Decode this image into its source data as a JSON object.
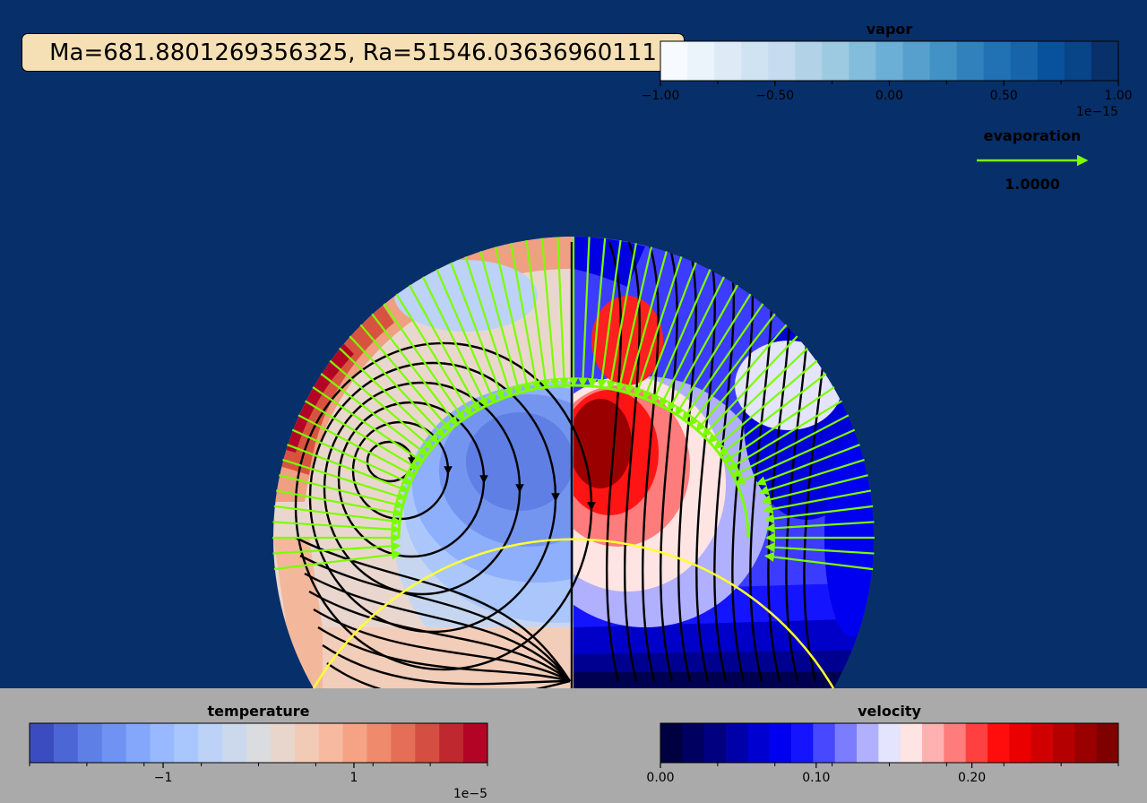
{
  "title": "Ma=681.8801269356325, Ra=51546.03636960111",
  "colors": {
    "background": "#072f69",
    "bottom_panel": "#aaaaaa",
    "title_box": "#f5dfb4",
    "interface_outline": "#ffff33",
    "evaporation_arrows": "#7cfc00",
    "streamlines": "#000000"
  },
  "chart_data": {
    "type": "heatmap",
    "description_fields": {
      "left_half_field": "temperature",
      "right_half_field": "velocity",
      "annulus_field": "vapor",
      "overlays": [
        "streamlines",
        "evaporation-arrows"
      ]
    },
    "colorbars": {
      "vapor": {
        "label": "vapor",
        "range": [
          -1.0,
          1.0
        ],
        "ticks": [
          -1.0,
          -0.5,
          0.0,
          0.5,
          1.0
        ],
        "tick_labels": [
          "−1.00",
          "−0.50",
          "0.00",
          "0.50",
          "1.00"
        ],
        "offset_label": "1e−15",
        "colors": [
          "#f7fbff",
          "#ebf3fb",
          "#deebf7",
          "#d0e3f3",
          "#c6dbef",
          "#b2d2e8",
          "#9ecae1",
          "#84bcdb",
          "#6baed6",
          "#57a0ce",
          "#4292c6",
          "#3181bd",
          "#2171b5",
          "#1764ab",
          "#08519c",
          "#084488",
          "#08306b"
        ]
      },
      "temperature": {
        "label": "temperature",
        "range": [
          -2.4,
          2.4
        ],
        "ticks": [
          -1,
          1
        ],
        "tick_labels": [
          "−1",
          "1"
        ],
        "offset_label": "1e−5",
        "colors": [
          "#3b4cc0",
          "#4c66d6",
          "#5e7fe6",
          "#7093f3",
          "#84a7fc",
          "#98b9ff",
          "#aac7fd",
          "#bcd2f7",
          "#ccd9ed",
          "#dbdcdf",
          "#e8d6cc",
          "#f2cbb7",
          "#f7baa0",
          "#f6a385",
          "#f08a6c",
          "#e46e56",
          "#d44e41",
          "#c0282f",
          "#b40426"
        ]
      },
      "velocity": {
        "label": "velocity",
        "range": [
          0.0,
          0.294
        ],
        "ticks": [
          0.0,
          0.1,
          0.2
        ],
        "tick_labels": [
          "0.00",
          "0.10",
          "0.20"
        ],
        "colors": [
          "#000040",
          "#000060",
          "#000080",
          "#0000a8",
          "#0000d0",
          "#0000f0",
          "#1414ff",
          "#4848ff",
          "#7c7cff",
          "#b0b0ff",
          "#e4e4ff",
          "#ffe4e4",
          "#ffb0b0",
          "#ff7c7c",
          "#ff4040",
          "#ff0c0c",
          "#ea0000",
          "#d00000",
          "#b50000",
          "#9a0000",
          "#800000"
        ]
      }
    },
    "evaporation_key": {
      "label": "evaporation",
      "value_label": "1.0000"
    }
  }
}
